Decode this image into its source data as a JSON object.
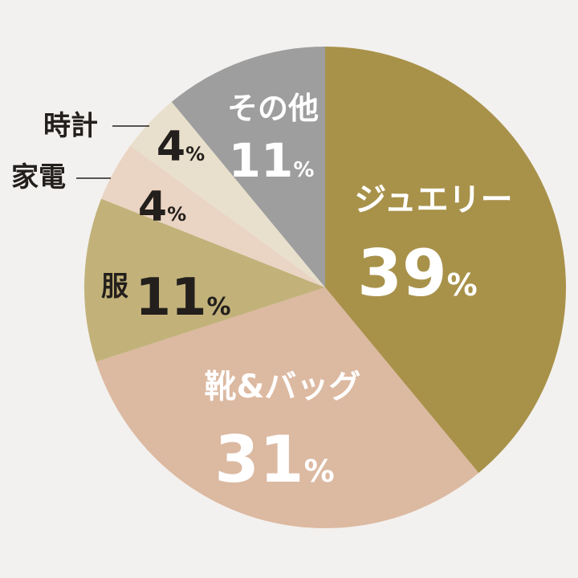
{
  "chart_data": {
    "type": "pie",
    "slices": [
      {
        "label": "ジュエリー",
        "value": 39,
        "value_label": "39",
        "color": "#a8924a",
        "text_color": "#ffffff",
        "pct_color": "#ffffff"
      },
      {
        "label": "靴&バッグ",
        "value": 31,
        "value_label": "31",
        "color": "#dcb9a1",
        "text_color": "#ffffff",
        "pct_color": "#ffffff"
      },
      {
        "label": "服",
        "value": 11,
        "value_label": "11",
        "color": "#c2b27a",
        "text_color": "#231f1c",
        "pct_color": "#231f1c"
      },
      {
        "label": "家電",
        "value": 4,
        "value_label": "4",
        "color": "#ead4c3",
        "text_color": "#231f1c",
        "pct_color": "#231f1c"
      },
      {
        "label": "時計",
        "value": 4,
        "value_label": "4",
        "color": "#e8e0cc",
        "text_color": "#231f1c",
        "pct_color": "#231f1c"
      },
      {
        "label": "その他",
        "value": 11,
        "value_label": "11",
        "color": "#9e9e9e",
        "text_color": "#ffffff",
        "pct_color": "#ffffff"
      }
    ],
    "unit": "%",
    "start": "12 o'clock",
    "direction": "clockwise"
  }
}
